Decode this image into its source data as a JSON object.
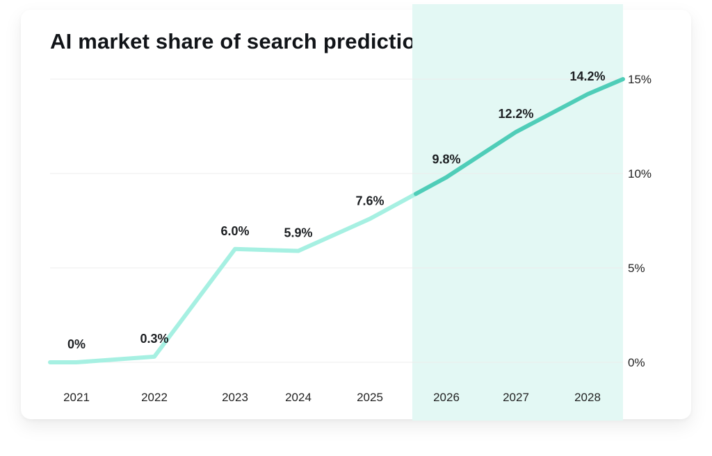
{
  "chart_data": {
    "type": "line",
    "title": "AI market share of search prediction",
    "categories": [
      "2021",
      "2022",
      "2023",
      "2024",
      "2025",
      "2026",
      "2027",
      "2028"
    ],
    "values": [
      0.0,
      0.3,
      6.0,
      5.9,
      7.6,
      9.8,
      12.2,
      14.2
    ],
    "data_labels": [
      "0%",
      "0.3%",
      "6.0%",
      "5.9%",
      "7.6%",
      "9.8%",
      "12.2%",
      "14.2%"
    ],
    "line_end_value": 15,
    "forecast_start": 2025.6,
    "forecast_categories": [
      "2026",
      "2027",
      "2028"
    ],
    "ylim": [
      0,
      15
    ],
    "y_ticks": [
      0,
      5,
      10,
      15
    ],
    "y_tick_labels": [
      "0%",
      "5%",
      "10%",
      "15%"
    ],
    "y_axis_position": "right",
    "grid": true,
    "legend": "none",
    "colors": {
      "actual_line": "#a6f0e2",
      "forecast_line": "#4fcdb8",
      "forecast_band": "#e3f8f4",
      "grid": "#ececec"
    }
  }
}
